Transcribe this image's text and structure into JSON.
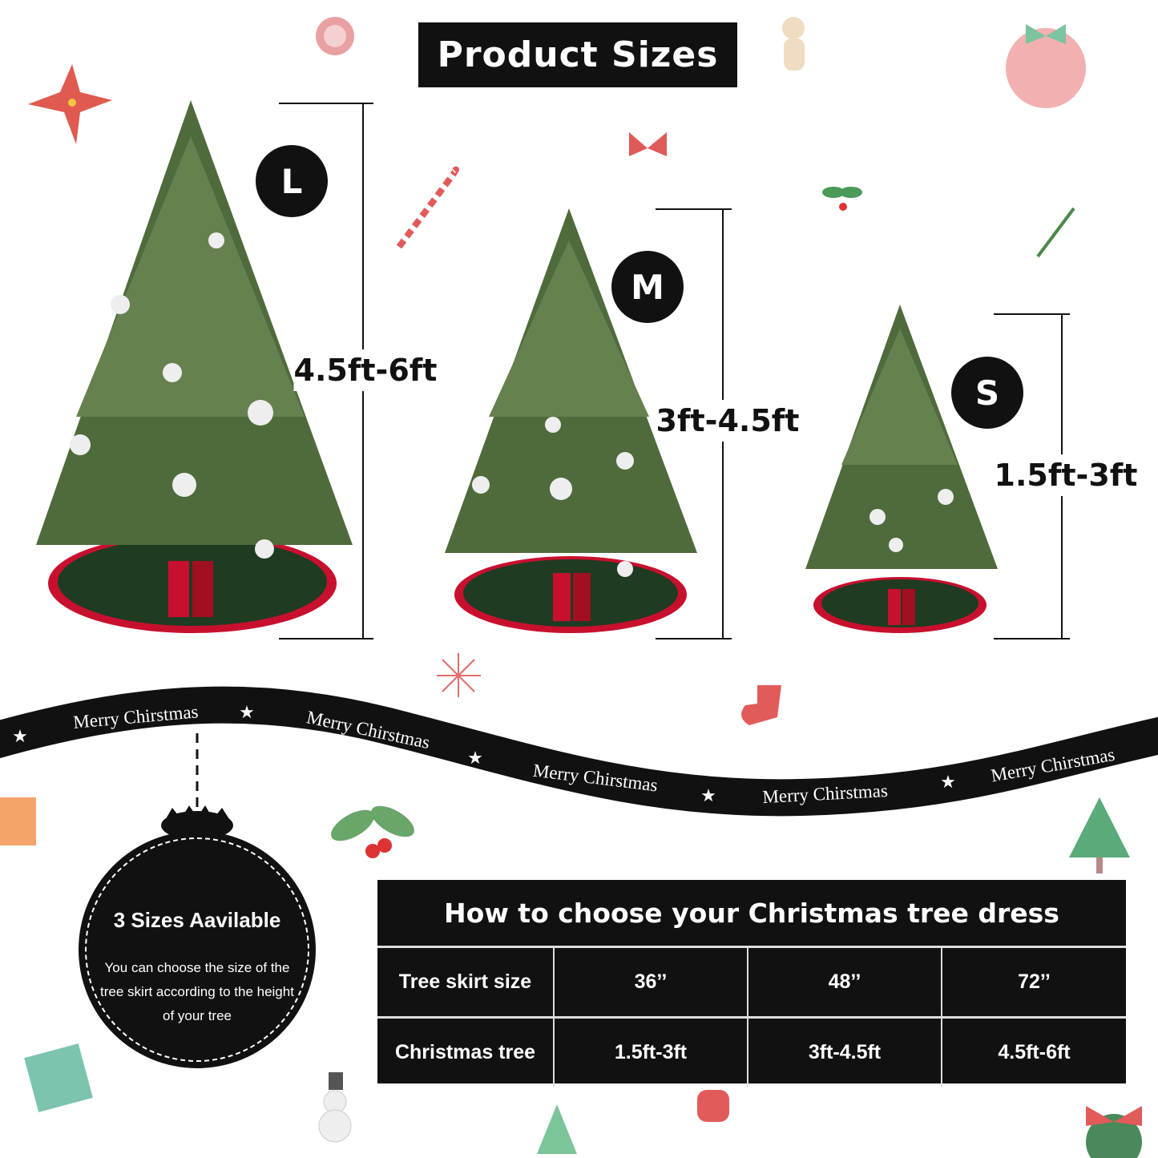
{
  "title": "Product Sizes",
  "sizes": [
    {
      "badge": "L",
      "range": "4.5ft-6ft"
    },
    {
      "badge": "M",
      "range": "3ft-4.5ft"
    },
    {
      "badge": "S",
      "range": "1.5ft-3ft"
    }
  ],
  "ribbon": {
    "text": "Merry Chirstmas",
    "text_first": "Merry Chirstmas"
  },
  "ornament": {
    "title": "3 Sizes Aavilable",
    "body": "You can choose the size of the tree skirt according to the height of your tree"
  },
  "table": {
    "heading": "How to choose your Christmas tree dress",
    "rows": [
      {
        "label": "Tree skirt size",
        "values": [
          "36’’",
          "48’’",
          "72’’"
        ]
      },
      {
        "label": "Christmas tree",
        "values": [
          "1.5ft-3ft",
          "3ft-4.5ft",
          "4.5ft-6ft"
        ]
      }
    ]
  },
  "colors": {
    "tree": "#4f6b3c",
    "skirt": "#1f3b22",
    "skirt_trim": "#c8102e",
    "black": "#111111"
  }
}
